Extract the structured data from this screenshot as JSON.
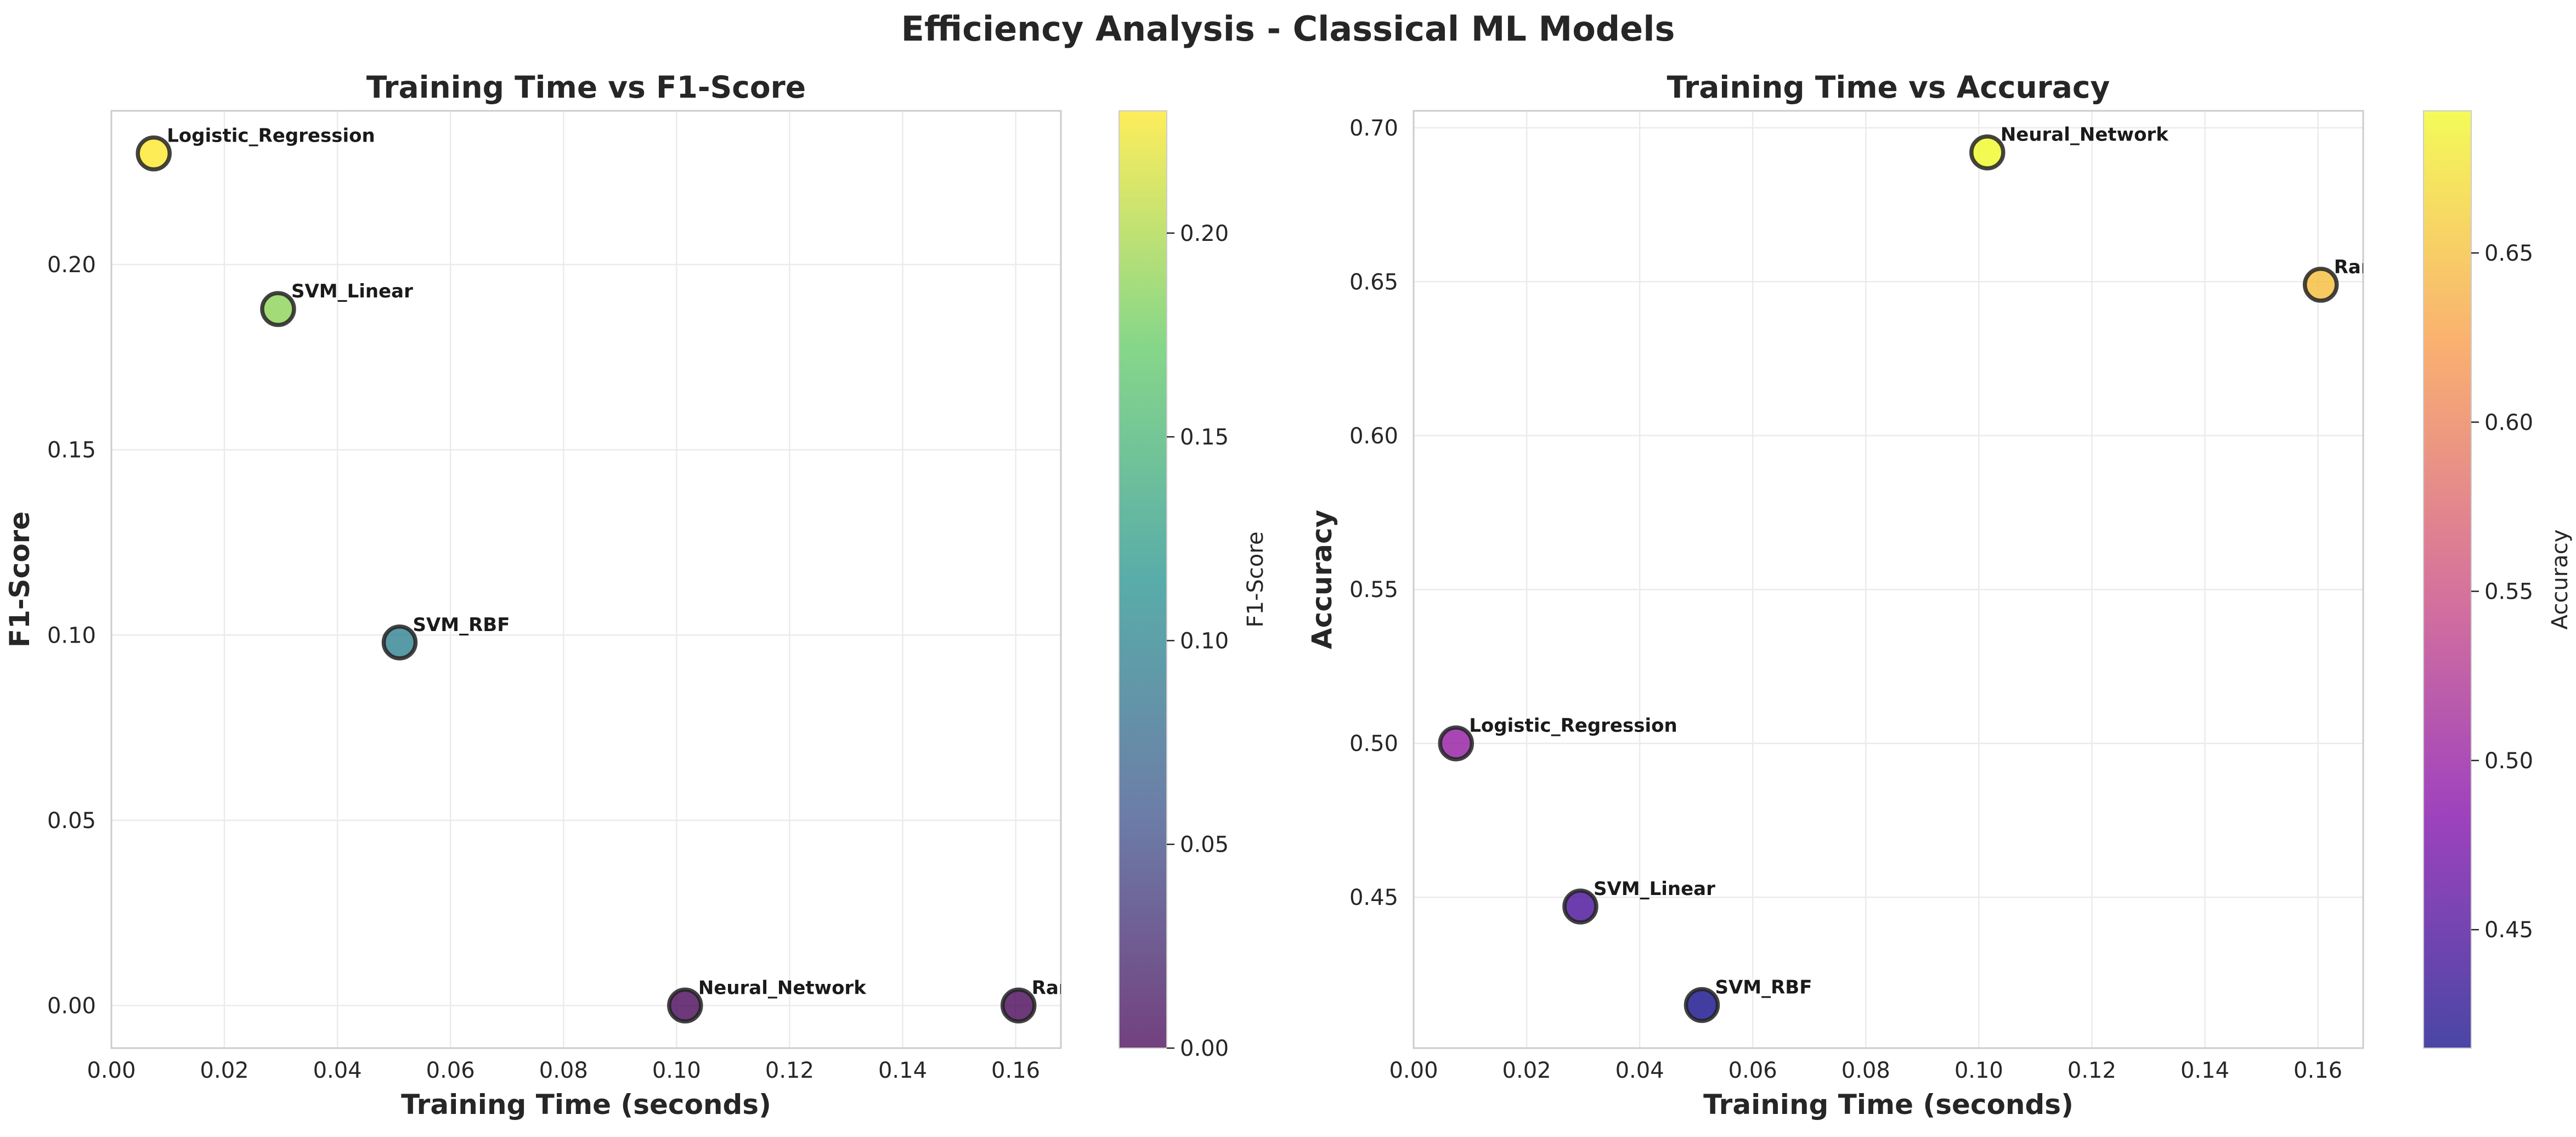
{
  "figure": {
    "title": "Efficiency Analysis - Classical ML Models"
  },
  "chart_data": [
    {
      "type": "scatter",
      "title": "Training Time vs F1-Score",
      "xlabel": "Training Time (seconds)",
      "ylabel": "F1-Score",
      "xlim": [
        0,
        0.168
      ],
      "ylim": [
        -0.0115,
        0.2415
      ],
      "xticks": [
        0,
        0.02,
        0.04,
        0.06,
        0.08,
        0.1,
        0.12,
        0.14,
        0.16
      ],
      "xtick_labels": [
        "0.00",
        "0.02",
        "0.04",
        "0.06",
        "0.08",
        "0.10",
        "0.12",
        "0.14",
        "0.16"
      ],
      "yticks": [
        0,
        0.05,
        0.1,
        0.15,
        0.2
      ],
      "ytick_labels": [
        "0.00",
        "0.05",
        "0.10",
        "0.15",
        "0.20"
      ],
      "grid": true,
      "colormap": "viridis",
      "colorbar": {
        "label": "F1-Score",
        "range": [
          0,
          0.23
        ],
        "ticks": [
          0,
          0.05,
          0.1,
          0.15,
          0.2
        ],
        "tick_labels": [
          "0.00",
          "0.05",
          "0.10",
          "0.15",
          "0.20"
        ],
        "colors": [
          "#440154",
          "#3b528b",
          "#21918c",
          "#5ec962",
          "#fde725"
        ]
      },
      "points": [
        {
          "label": "Logistic_Regression",
          "x": 0.0075,
          "y": 0.23
        },
        {
          "label": "SVM_Linear",
          "x": 0.0295,
          "y": 0.188
        },
        {
          "label": "SVM_RBF",
          "x": 0.051,
          "y": 0.098
        },
        {
          "label": "Neural_Network",
          "x": 0.1015,
          "y": 0.0
        },
        {
          "label": "Random_Forest",
          "x": 0.1605,
          "y": 0.0
        }
      ]
    },
    {
      "type": "scatter",
      "title": "Training Time vs Accuracy",
      "xlabel": "Training Time (seconds)",
      "ylabel": "Accuracy",
      "xlim": [
        0,
        0.168
      ],
      "ylim": [
        0.401,
        0.7055
      ],
      "xticks": [
        0,
        0.02,
        0.04,
        0.06,
        0.08,
        0.1,
        0.12,
        0.14,
        0.16
      ],
      "xtick_labels": [
        "0.00",
        "0.02",
        "0.04",
        "0.06",
        "0.08",
        "0.10",
        "0.12",
        "0.14",
        "0.16"
      ],
      "yticks": [
        0.45,
        0.5,
        0.55,
        0.6,
        0.65,
        0.7
      ],
      "ytick_labels": [
        "0.45",
        "0.50",
        "0.55",
        "0.60",
        "0.65",
        "0.70"
      ],
      "grid": true,
      "colormap": "plasma",
      "colorbar": {
        "label": "Accuracy",
        "range": [
          0.415,
          0.692
        ],
        "ticks": [
          0.45,
          0.5,
          0.55,
          0.6,
          0.65
        ],
        "tick_labels": [
          "0.45",
          "0.50",
          "0.55",
          "0.60",
          "0.65"
        ],
        "colors": [
          "#0d0887",
          "#7e03a8",
          "#cc4778",
          "#f89540",
          "#f0f921"
        ]
      },
      "points": [
        {
          "label": "Neural_Network",
          "x": 0.1015,
          "y": 0.692
        },
        {
          "label": "Random_Forest",
          "x": 0.1605,
          "y": 0.649
        },
        {
          "label": "Logistic_Regression",
          "x": 0.0075,
          "y": 0.5
        },
        {
          "label": "SVM_Linear",
          "x": 0.0295,
          "y": 0.447
        },
        {
          "label": "SVM_RBF",
          "x": 0.051,
          "y": 0.415
        }
      ]
    }
  ]
}
